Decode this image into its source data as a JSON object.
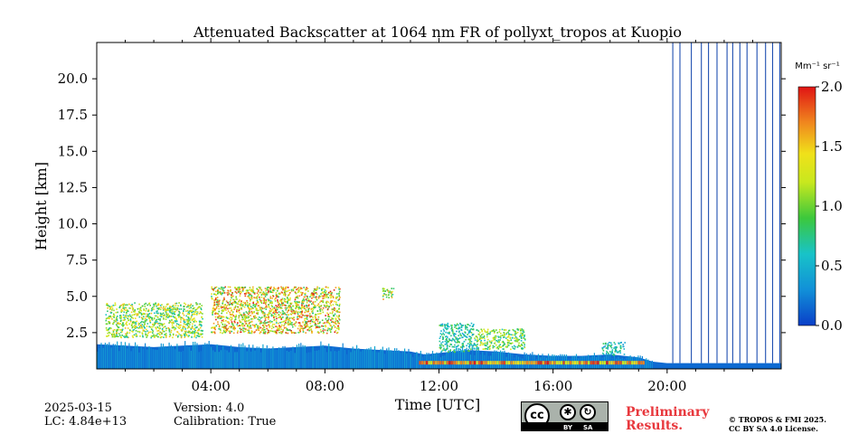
{
  "chart_data": {
    "type": "heatmap",
    "title": "Attenuated Backscatter at 1064 nm FR of pollyxt_tropos at Kuopio",
    "xlabel": "Time [UTC]",
    "ylabel": "Height [km]",
    "x_range_hours": [
      0,
      24
    ],
    "ylim_km": [
      0,
      22.5
    ],
    "x_ticks": [
      {
        "hour": 4,
        "label": "04:00"
      },
      {
        "hour": 8,
        "label": "08:00"
      },
      {
        "hour": 12,
        "label": "12:00"
      },
      {
        "hour": 16,
        "label": "16:00"
      },
      {
        "hour": 20,
        "label": "20:00"
      }
    ],
    "y_ticks": [
      {
        "value": 2.5,
        "label": "2.5"
      },
      {
        "value": 5.0,
        "label": "5.0"
      },
      {
        "value": 7.5,
        "label": "7.5"
      },
      {
        "value": 10.0,
        "label": "10.0"
      },
      {
        "value": 12.5,
        "label": "12.5"
      },
      {
        "value": 15.0,
        "label": "15.0"
      },
      {
        "value": 17.5,
        "label": "17.5"
      },
      {
        "value": 20.0,
        "label": "20.0"
      }
    ],
    "colorbar": {
      "unit_label": "Mm⁻¹ sr⁻¹",
      "range": [
        0.0,
        2.0
      ],
      "ticks": [
        {
          "value": 0.0,
          "label": "0.0"
        },
        {
          "value": 0.5,
          "label": "0.5"
        },
        {
          "value": 1.0,
          "label": "1.0"
        },
        {
          "value": 1.5,
          "label": "1.5"
        },
        {
          "value": 2.0,
          "label": "2.0"
        }
      ],
      "colormap": "jet"
    },
    "boundary_layer_top_km": [
      [
        0,
        1.7
      ],
      [
        1,
        1.6
      ],
      [
        2,
        1.5
      ],
      [
        3,
        1.6
      ],
      [
        4,
        1.7
      ],
      [
        5,
        1.5
      ],
      [
        6,
        1.4
      ],
      [
        7,
        1.5
      ],
      [
        8,
        1.6
      ],
      [
        9,
        1.4
      ],
      [
        10,
        1.3
      ],
      [
        11,
        1.2
      ],
      [
        11.5,
        1.0
      ],
      [
        12,
        1.1
      ],
      [
        13,
        1.3
      ],
      [
        14,
        1.2
      ],
      [
        15,
        1.0
      ],
      [
        16,
        0.9
      ],
      [
        17,
        0.9
      ],
      [
        18,
        1.0
      ],
      [
        19,
        0.8
      ],
      [
        19.5,
        0.5
      ],
      [
        20,
        0.4
      ],
      [
        24,
        0.4
      ]
    ],
    "aerosol_layers": [
      {
        "start_hour": 0.3,
        "end_hour": 3.7,
        "base_km": 2.2,
        "top_km": 4.6,
        "max_value": 1.6
      },
      {
        "start_hour": 4.0,
        "end_hour": 8.5,
        "base_km": 2.5,
        "top_km": 5.7,
        "max_value": 2.0
      },
      {
        "start_hour": 10.0,
        "end_hour": 10.4,
        "base_km": 4.8,
        "top_km": 5.6,
        "max_value": 1.7
      },
      {
        "start_hour": 12.0,
        "end_hour": 13.2,
        "base_km": 1.2,
        "top_km": 3.2,
        "max_value": 1.0
      },
      {
        "start_hour": 13.2,
        "end_hour": 15.0,
        "base_km": 1.4,
        "top_km": 2.8,
        "max_value": 1.4
      },
      {
        "start_hour": 17.7,
        "end_hour": 18.5,
        "base_km": 1.0,
        "top_km": 1.9,
        "max_value": 0.9
      }
    ],
    "no_data_profile_hours": [
      20.2,
      20.45,
      20.85,
      21.2,
      21.45,
      21.75,
      22.1,
      22.3,
      22.55,
      22.8,
      23.15,
      23.45,
      23.7,
      23.95
    ]
  },
  "metadata": {
    "date": "2025-03-15",
    "lidar_constant": "LC: 4.84e+13",
    "version": "Version: 4.0",
    "calibration": "Calibration: True",
    "preliminary_line1": "Preliminary",
    "preliminary_line2": "Results.",
    "copyright_line1": "© TROPOS & FMI 2025.",
    "copyright_line2": "CC BY SA 4.0 License.",
    "license_badge": {
      "cc": "cc",
      "by": "BY",
      "sa": "SA"
    }
  }
}
